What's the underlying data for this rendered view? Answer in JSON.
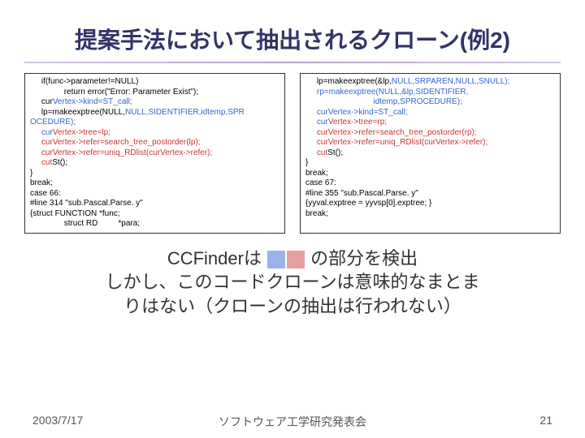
{
  "title": "提案手法において抽出されるクローン(例2)",
  "code_left": {
    "l1": "     if(func->parameter!=NULL)",
    "l2": "               return error(\"Error: Parameter Exist\");",
    "l3a": "     cur",
    "l3b": "Vertex->kind=ST_call;",
    "l4a": "     lp=makeexptree(NULL,",
    "l4b": "NULL,",
    "l4c": "SIDENTIFIER,",
    "l4d": "idtemp,",
    "l4e": "SPR",
    "l5": "OCEDURE);",
    "l6a": "     cur",
    "l6b": "Vertex->tree=lp;",
    "l7a": "     cur",
    "l7b": "Vertex->refer=search_tree_postorder(lp);",
    "l8a": "     cur",
    "l8b": "Vertex->refer=uniq_RDlist(cur",
    "l8c": "Vertex->refer);",
    "l9a": "     cut",
    "l9b": "St();",
    "l10": "}",
    "l11": "break;",
    "l12": "case 66:",
    "l13": "#line 314 \"sub.Pascal.Parse. y\"",
    "l14": "{struct FUNCTION *func;",
    "l15": "               struct RD         *para;"
  },
  "code_right": {
    "l1a": "     lp=makeexptree(&lp,",
    "l1b": "NULL,",
    "l1c": "SRPAREN,",
    "l1d": "NULL,",
    "l1e": "SNULL);",
    "l2a": "     rp=makeexptree(NULL,&lp,",
    "l2b": "SIDENTIFIER,",
    "l3a": "                              idtemp,",
    "l3b": "SPROCEDURE);",
    "l4a": "     cur",
    "l4b": "Vertex->kind=ST_call;",
    "l5a": "     cur",
    "l5b": "Vertex->tree=rp;",
    "l6a": "     cur",
    "l6b": "Vertex->refer=search_tree_postorder(rp);",
    "l7a": "     cur",
    "l7b": "Vertex->refer=uniq_RDlist(cur",
    "l7c": "Vertex->refer);",
    "l8a": "     cut",
    "l8b": "St();",
    "l9": "}",
    "l10": "break;",
    "l11": "case 67:",
    "l12": "#line 355 \"sub.Pascal.Parse. y\"",
    "l13a": "{yyval.",
    "l13b": "exptree = yyvsp[0].",
    "l13c": "exptree; }",
    "l14": "break;"
  },
  "summary": {
    "line1_before": "CCFinderは ",
    "line1_after": " の部分を検出",
    "line2": "しかし、このコードクローンは意味的なまとま",
    "line3": "りはない（クローンの抽出は行われない）"
  },
  "footer": {
    "date": "2003/7/17",
    "center": "ソフトウェア工学研究発表会",
    "page": "21"
  },
  "colors": {
    "title_color": "#333366",
    "hl_blue": "#3366cc",
    "hl_red": "#cc3333",
    "sq_blue": "#99b3e6",
    "sq_red": "#e6a0a0",
    "underline": "#b8a0d0"
  }
}
